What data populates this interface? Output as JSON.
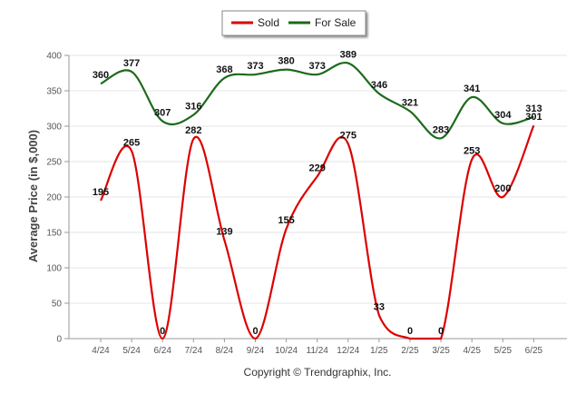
{
  "chart_data": {
    "type": "line",
    "categories": [
      "4/24",
      "5/24",
      "6/24",
      "7/24",
      "8/24",
      "9/24",
      "10/24",
      "11/24",
      "12/24",
      "1/25",
      "2/25",
      "3/25",
      "4/25",
      "5/25",
      "6/25"
    ],
    "series": [
      {
        "name": "Sold",
        "color": "#dd0000",
        "values": [
          195,
          265,
          0,
          282,
          139,
          0,
          155,
          229,
          275,
          33,
          0,
          0,
          253,
          200,
          301
        ]
      },
      {
        "name": "For Sale",
        "color": "#1a6a1a",
        "values": [
          360,
          377,
          307,
          316,
          368,
          373,
          380,
          373,
          389,
          346,
          321,
          283,
          341,
          304,
          313
        ]
      }
    ],
    "ylabel": "Average Price (in $,000)",
    "ylim": [
      0,
      400
    ],
    "yticks": [
      0,
      50,
      100,
      150,
      200,
      250,
      300,
      350,
      400
    ],
    "grid": true,
    "legend_position": "top-center"
  },
  "footer": {
    "credit": "Copyright © Trendgraphix, Inc."
  }
}
